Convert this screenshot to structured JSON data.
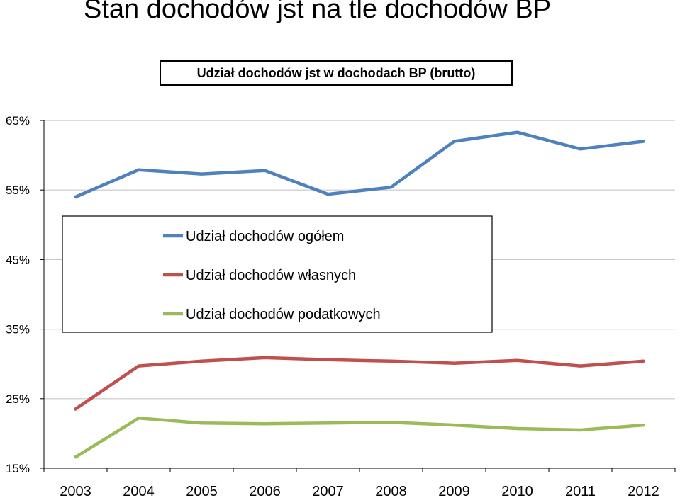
{
  "page": {
    "title": "Stan dochodów jst na tle dochodów BP"
  },
  "chart_data": {
    "type": "line",
    "title": "Udział dochodów jst w dochodach BP (brutto)",
    "xlabel": "",
    "ylabel": "",
    "categories": [
      "2003",
      "2004",
      "2005",
      "2006",
      "2007",
      "2008",
      "2009",
      "2010",
      "2011",
      "2012"
    ],
    "ylim": [
      15,
      65
    ],
    "yticks": [
      15,
      25,
      35,
      45,
      55,
      65
    ],
    "ytick_labels": [
      "15%",
      "25%",
      "35%",
      "45%",
      "55%",
      "65%"
    ],
    "grid": true,
    "legend_position": "middle-left",
    "series": [
      {
        "name": "Udział dochodów ogółem",
        "color": "#4F81BD",
        "values": [
          54.0,
          57.9,
          57.3,
          57.8,
          54.4,
          55.4,
          62.0,
          63.3,
          60.9,
          62.0
        ]
      },
      {
        "name": "Udział dochodów własnych",
        "color": "#C0504D",
        "values": [
          23.5,
          29.7,
          30.4,
          30.9,
          30.6,
          30.4,
          30.1,
          30.5,
          29.7,
          30.4
        ]
      },
      {
        "name": "Udział dochodów podatkowych",
        "color": "#9BBB59",
        "values": [
          16.6,
          22.2,
          21.5,
          21.4,
          21.5,
          21.6,
          21.2,
          20.7,
          20.5,
          21.2
        ]
      }
    ]
  }
}
